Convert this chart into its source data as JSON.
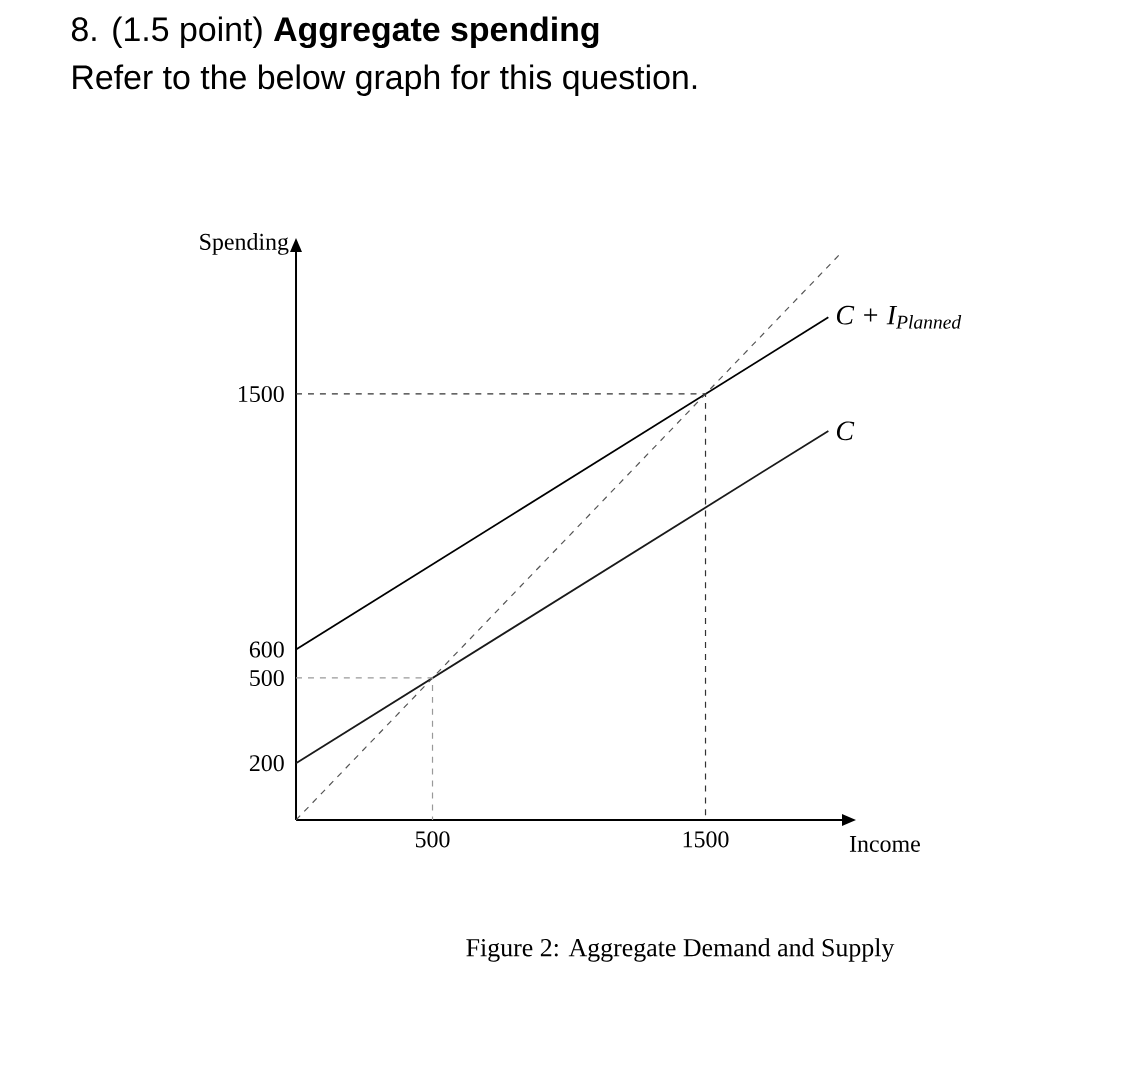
{
  "chart_data": {
    "type": "line",
    "title": "8. (1.5 point) **Aggregate spending**",
    "subtitle": "Refer to the below graph for this question.",
    "xlabel": "Income",
    "ylabel": "Spending",
    "annotations": [
      "Figure 2: Aggregate Demand and Supply"
    ],
    "xlim": [
      0,
      2000
    ],
    "ylim": [
      0,
      2000
    ],
    "xticks": [
      500,
      1500
    ],
    "yticks": [
      200,
      500,
      600,
      1500
    ],
    "marker": "none",
    "series": [
      {
        "name": "C + I$_{Planned}$",
        "color": "#000000",
        "x": [
          0,
          1950
        ],
        "values": [
          600,
          1770
        ],
        "line_style": "solid"
      },
      {
        "name": "C",
        "color": "#1a1a1a",
        "x": [
          0,
          1950
        ],
        "values": [
          200,
          1370
        ],
        "line_style": "solid"
      },
      {
        "color": "#555555",
        "x": [
          0,
          1990
        ],
        "values": [
          0,
          1990
        ],
        "line_style": "dashed"
      },
      {
        "color": "#333333",
        "x": [
          0,
          1500,
          1500
        ],
        "values": [
          1500,
          1500,
          0
        ],
        "line_style": "dashed"
      },
      {
        "color": "#999999",
        "x": [
          0,
          500,
          500
        ],
        "values": [
          500,
          500,
          0
        ],
        "line_style": "dashed"
      }
    ]
  }
}
